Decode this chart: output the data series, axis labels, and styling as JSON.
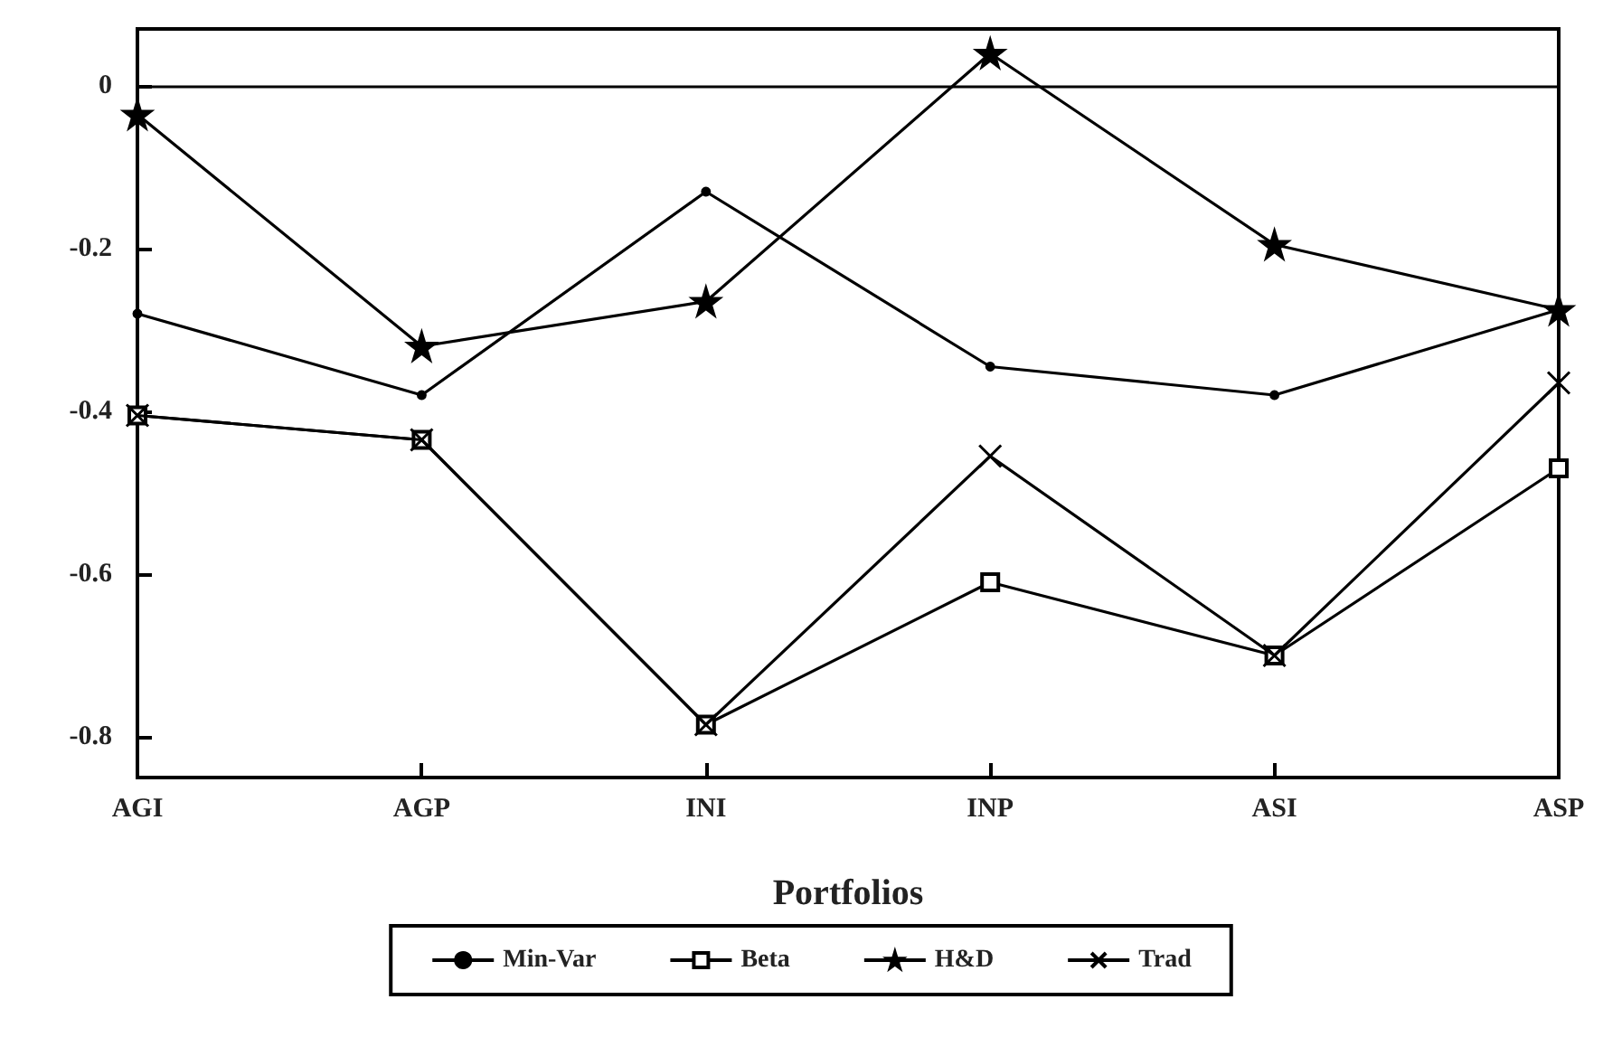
{
  "chart_data": {
    "type": "line",
    "xlabel": "Portfolios",
    "categories": [
      "AGI",
      "AGP",
      "INI",
      "INP",
      "ASI",
      "ASP"
    ],
    "series": [
      {
        "name": "Min-Var",
        "color": "#000000",
        "marker": "circle",
        "values": [
          -0.28,
          -0.38,
          -0.13,
          -0.345,
          -0.38,
          -0.275
        ]
      },
      {
        "name": "Beta",
        "color": "#000000",
        "marker": "square",
        "values": [
          -0.405,
          -0.435,
          -0.785,
          -0.61,
          -0.7,
          -0.47
        ]
      },
      {
        "name": "H&D",
        "color": "#000000",
        "marker": "star",
        "values": [
          -0.035,
          -0.32,
          -0.265,
          0.04,
          -0.195,
          -0.275
        ]
      },
      {
        "name": "Trad",
        "color": "#000000",
        "marker": "cross",
        "values": [
          -0.405,
          -0.435,
          -0.785,
          -0.455,
          -0.7,
          -0.365
        ]
      }
    ],
    "ylim": [
      -0.85,
      0.07
    ],
    "yticks": [
      0,
      -0.2,
      -0.4,
      -0.6,
      -0.8
    ],
    "ref_lines": [
      {
        "axis": "y",
        "value": 0
      }
    ],
    "grid": false,
    "legend": "bottom",
    "line_style": "solid"
  }
}
